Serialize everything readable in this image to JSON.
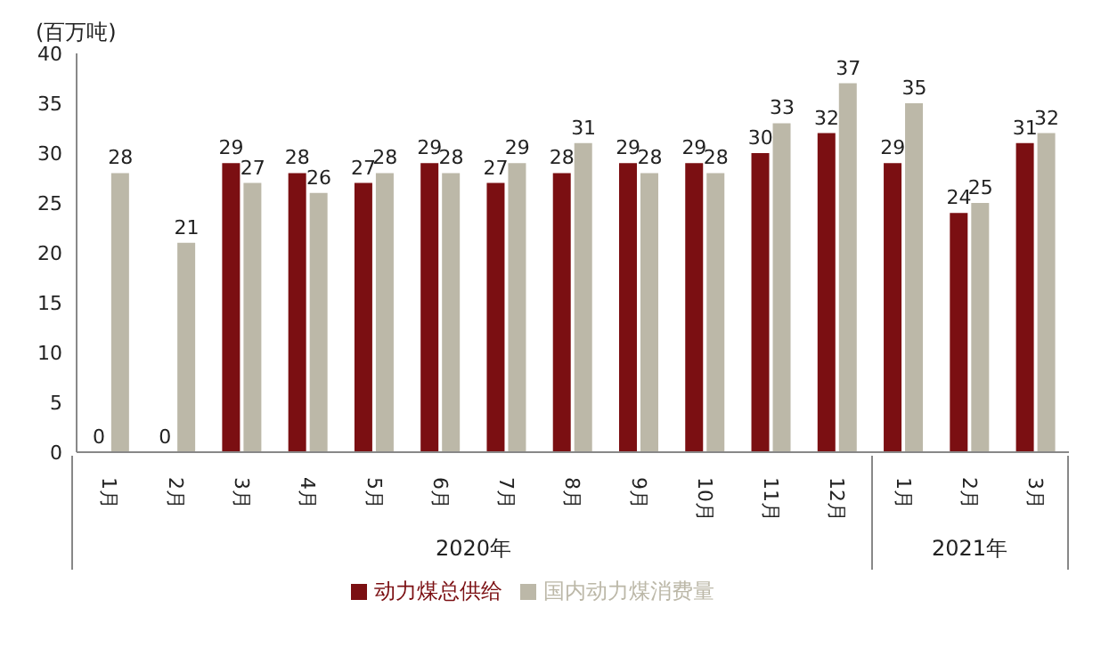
{
  "chart_data": {
    "type": "bar",
    "ylabel": "(百万吨)",
    "categories": [
      "1月",
      "2月",
      "3月",
      "4月",
      "5月",
      "6月",
      "7月",
      "8月",
      "9月",
      "10月",
      "11月",
      "12月",
      "1月",
      "2月",
      "3月"
    ],
    "series": [
      {
        "name": "动力煤总供给",
        "color": "#7b0f12",
        "values": [
          0,
          0,
          29,
          28,
          27,
          29,
          27,
          28,
          29,
          29,
          30,
          32,
          29,
          24,
          31
        ]
      },
      {
        "name": "国内动力煤消费量",
        "color": "#bcb8a8",
        "values": [
          28,
          21,
          27,
          26,
          28,
          28,
          29,
          31,
          28,
          28,
          33,
          37,
          35,
          25,
          32
        ]
      }
    ],
    "ylim": [
      0,
      40
    ],
    "yticks": [
      0,
      5,
      10,
      15,
      20,
      25,
      30,
      35,
      40
    ],
    "data_labels": true,
    "legend": "bottom",
    "grid": false,
    "annotations": [
      "2020年",
      "2021年"
    ]
  }
}
